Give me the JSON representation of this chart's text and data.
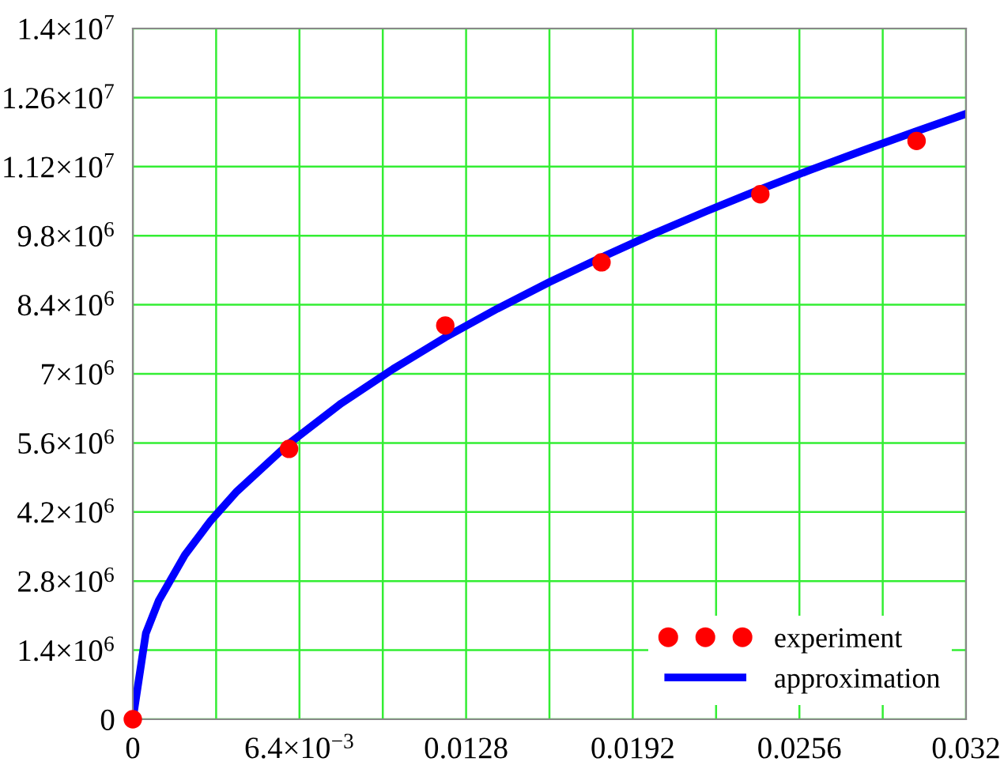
{
  "chart_data": {
    "type": "scatter",
    "series": [
      {
        "name": "experiment",
        "color": "#ff0000",
        "marker": "circle",
        "x": [
          0,
          0.006,
          0.012,
          0.018,
          0.0241,
          0.0301
        ],
        "values": [
          0,
          5480000.0,
          7980000.0,
          9260000.0,
          10640000.0,
          11720000.0
        ]
      },
      {
        "name": "approximation",
        "type": "line",
        "color": "#0000ff",
        "marker": "none",
        "line_style": "solid",
        "x": [
          0,
          0.0005,
          0.001,
          0.002,
          0.003,
          0.004,
          0.006,
          0.008,
          0.01,
          0.012,
          0.014,
          0.016,
          0.018,
          0.02,
          0.022,
          0.024,
          0.026,
          0.028,
          0.03,
          0.032
        ],
        "values": [
          0,
          1740000.0,
          2410000.0,
          3330000.0,
          4030000.0,
          4620000.0,
          5590000.0,
          6400000.0,
          7100000.0,
          7740000.0,
          8320000.0,
          8860000.0,
          9360000.0,
          9840000.0,
          10290000.0,
          10720000.0,
          11130000.0,
          11520000.0,
          11900000.0,
          12270000.0
        ]
      }
    ],
    "xlim": [
      0,
      0.032
    ],
    "ylim": [
      0,
      14000000.0
    ],
    "xticks": [
      0,
      {
        "value": 0.0032,
        "label": null
      },
      {
        "value": 0.0064,
        "label": "6.4×10$^{−3}$"
      },
      {
        "value": 0.0096,
        "label": null
      },
      0.0128,
      {
        "value": 0.016,
        "label": null
      },
      0.0192,
      {
        "value": 0.0224,
        "label": null
      },
      0.0256,
      {
        "value": 0.0288,
        "label": null
      },
      0.032
    ],
    "yticks": [
      0,
      {
        "value": 1400000.0,
        "label": "1.4×10$^{6}$"
      },
      {
        "value": 2800000.0,
        "label": "2.8×10$^{6}$"
      },
      {
        "value": 4200000.0,
        "label": "4.2×10$^{6}$"
      },
      {
        "value": 5600000.0,
        "label": "5.6×10$^{6}$"
      },
      {
        "value": 7000000.0,
        "label": "7×10$^{6}$"
      },
      {
        "value": 8400000.0,
        "label": "8.4×10$^{6}$"
      },
      {
        "value": 9800000.0,
        "label": "9.8×10$^{6}$"
      },
      {
        "value": 11200000.0,
        "label": "1.12×10$^{7}$"
      },
      {
        "value": 12600000.0,
        "label": "1.26×10$^{7}$"
      },
      {
        "value": 14000000.0,
        "label": "1.4×10$^{7}$"
      }
    ],
    "grid": true,
    "legend": "bottom right"
  }
}
